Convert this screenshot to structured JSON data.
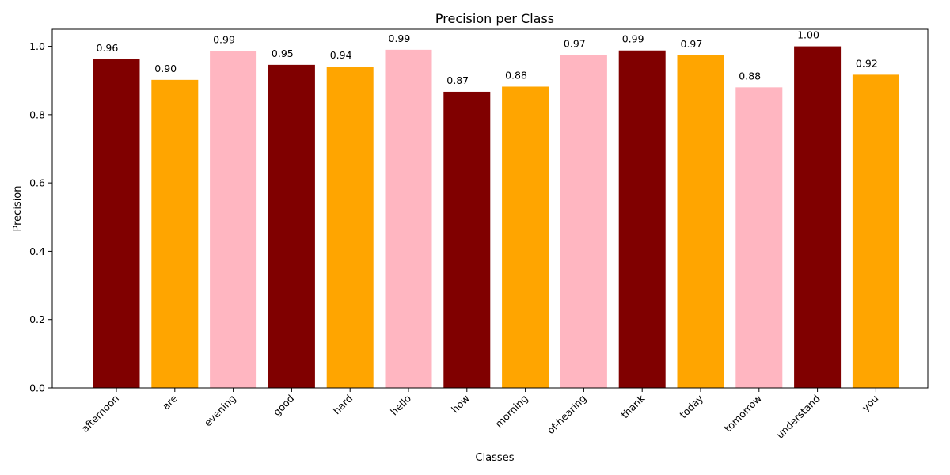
{
  "chart_data": {
    "type": "bar",
    "title": "Precision per Class",
    "xlabel": "Classes",
    "ylabel": "Precision",
    "categories": [
      "afternoon",
      "are",
      "evening",
      "good",
      "hard",
      "hello",
      "how",
      "morning",
      "of-hearing",
      "thank",
      "today",
      "tomorrow",
      "understand",
      "you"
    ],
    "values": [
      0.962,
      0.902,
      0.986,
      0.946,
      0.941,
      0.99,
      0.867,
      0.882,
      0.975,
      0.988,
      0.974,
      0.88,
      1.0,
      0.917
    ],
    "value_labels": [
      "0.96",
      "0.90",
      "0.99",
      "0.95",
      "0.94",
      "0.99",
      "0.87",
      "0.88",
      "0.97",
      "0.99",
      "0.97",
      "0.88",
      "1.00",
      "0.92"
    ],
    "colors": [
      "#800000",
      "#FFA500",
      "#FFB6C1",
      "#800000",
      "#FFA500",
      "#FFB6C1",
      "#800000",
      "#FFA500",
      "#FFB6C1",
      "#800000",
      "#FFA500",
      "#FFB6C1",
      "#800000",
      "#FFA500"
    ],
    "ylim": [
      0,
      1.05
    ],
    "yticks": [
      0.0,
      0.2,
      0.4,
      0.6,
      0.8,
      1.0
    ],
    "ytick_labels": [
      "0.0",
      "0.2",
      "0.4",
      "0.6",
      "0.8",
      "1.0"
    ],
    "grid": false
  }
}
